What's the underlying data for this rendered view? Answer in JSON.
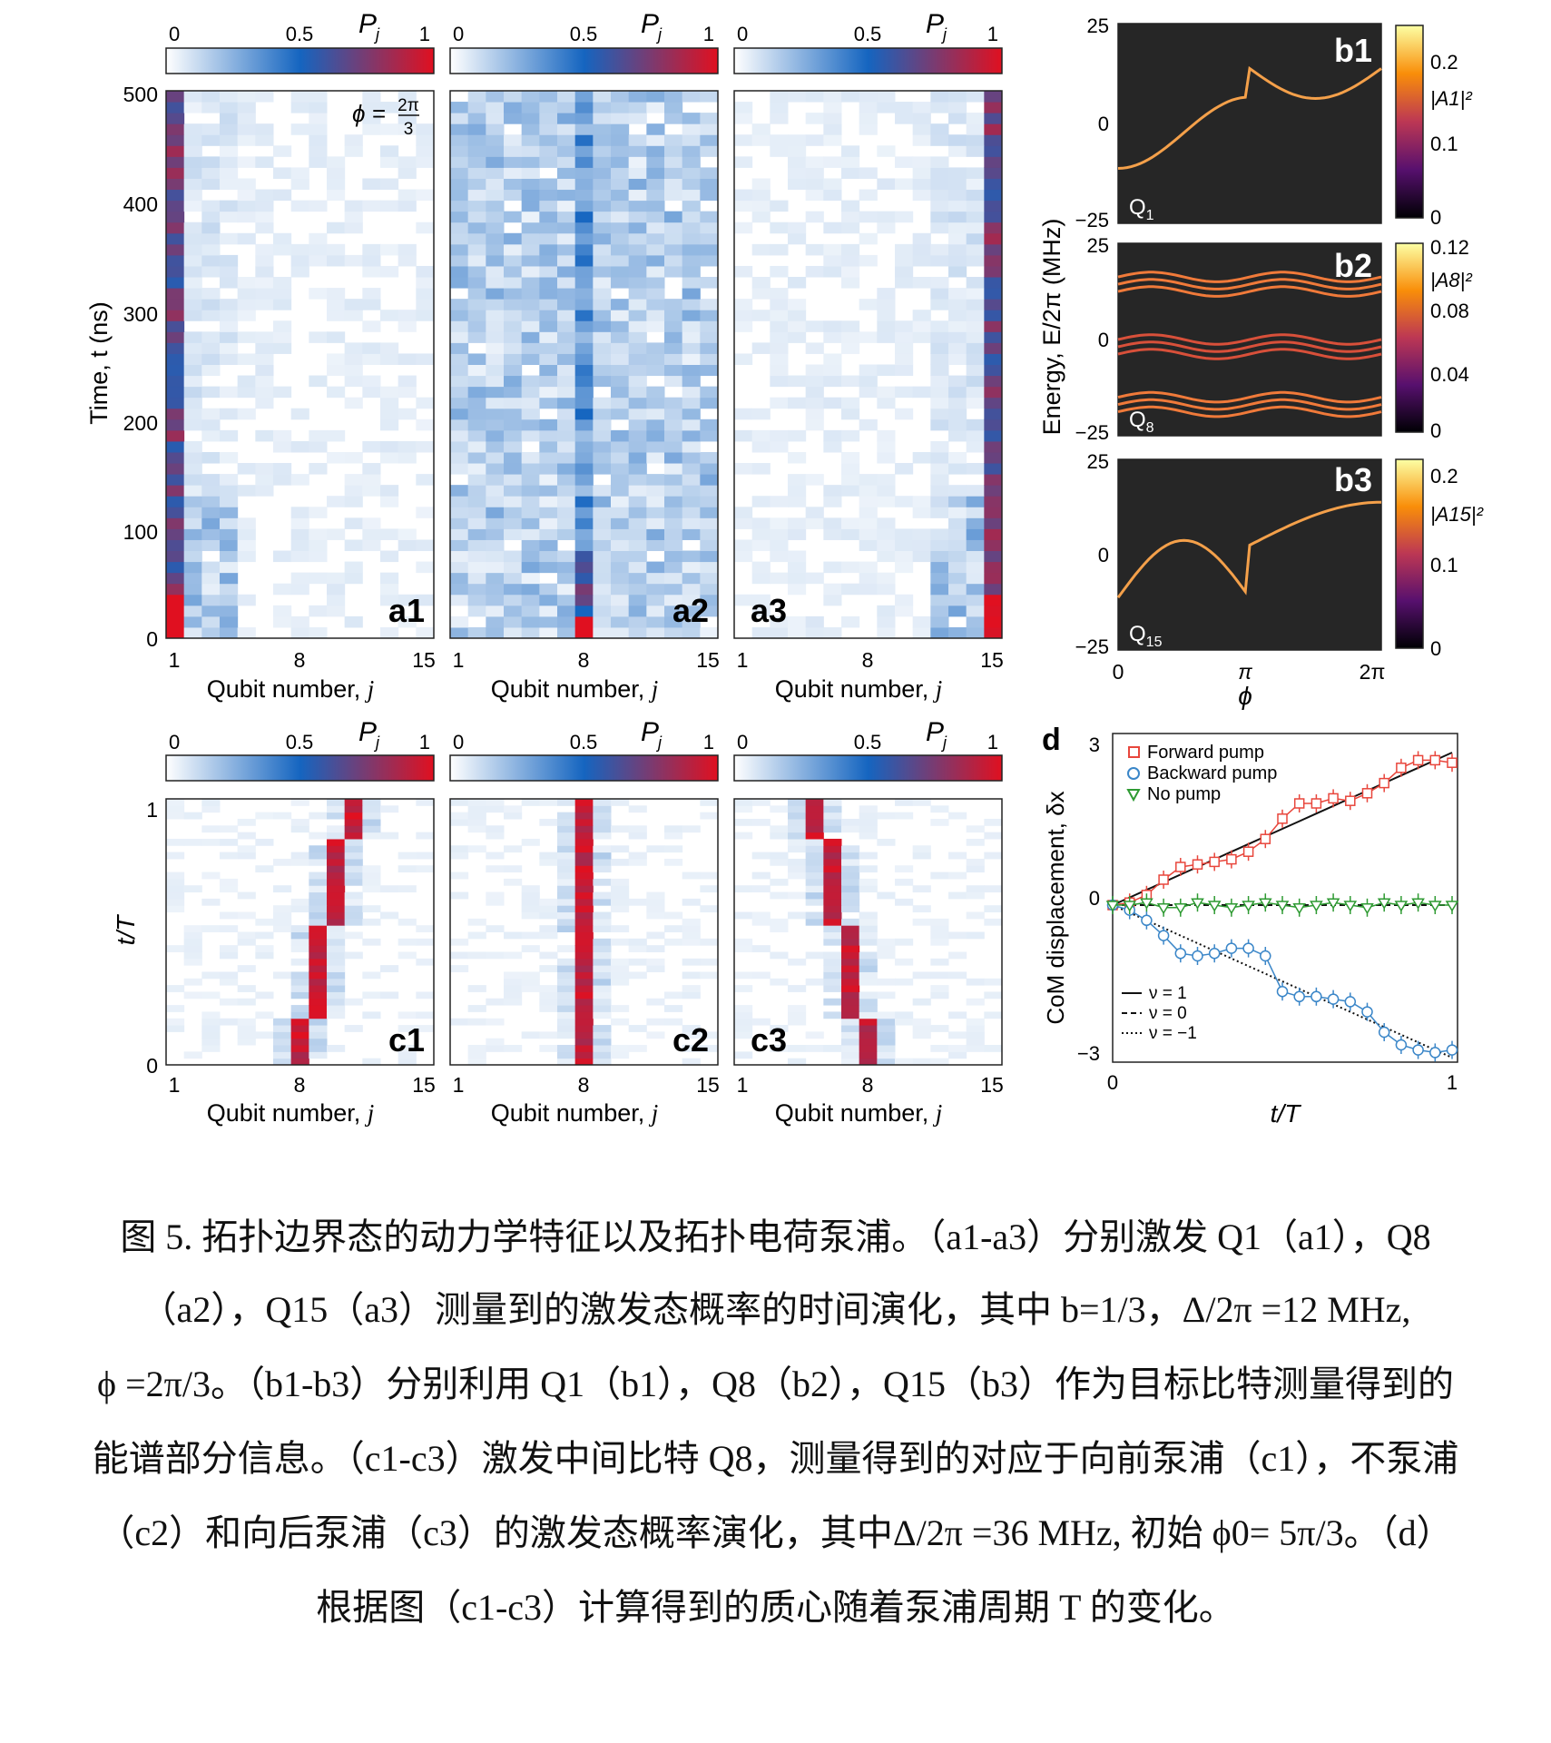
{
  "colorbar": {
    "ticks": [
      "0",
      "0.5",
      "1"
    ],
    "label": "P",
    "label_sub": "j",
    "colors": [
      "#ffffff",
      "#1565c0",
      "#e01020"
    ]
  },
  "a_panels": [
    {
      "label": "a1",
      "xticks": [
        "1",
        "8",
        "15"
      ],
      "xlabel": "Qubit number, ",
      "xlabel_var": "j"
    },
    {
      "label": "a2",
      "xticks": [
        "1",
        "8",
        "15"
      ],
      "xlabel": "Qubit number, ",
      "xlabel_var": "j"
    },
    {
      "label": "a3",
      "xticks": [
        "1",
        "8",
        "15"
      ],
      "xlabel": "Qubit number, ",
      "xlabel_var": "j"
    }
  ],
  "a_yaxis": {
    "label": "Time, t (ns)",
    "ticks": [
      "0",
      "100",
      "200",
      "300",
      "400",
      "500"
    ]
  },
  "a1_annotation": {
    "phi": "ϕ =",
    "num": "2π",
    "den": "3"
  },
  "c_panels": [
    {
      "label": "c1",
      "xticks": [
        "1",
        "8",
        "15"
      ],
      "xlabel": "Qubit number, ",
      "xlabel_var": "j"
    },
    {
      "label": "c2",
      "xticks": [
        "1",
        "8",
        "15"
      ],
      "xlabel": "Qubit number, ",
      "xlabel_var": "j"
    },
    {
      "label": "c3",
      "xticks": [
        "1",
        "8",
        "15"
      ],
      "xlabel": "Qubit number, ",
      "xlabel_var": "j"
    }
  ],
  "c_yaxis": {
    "label": "t/T",
    "ticks": [
      "0",
      "1"
    ]
  },
  "b_panels": [
    {
      "label": "b1",
      "qubit": "Q",
      "qubit_sub": "1",
      "cbar_label": "|A1|²",
      "cbar_ticks": [
        "0",
        "0.1",
        "0.2"
      ]
    },
    {
      "label": "b2",
      "qubit": "Q",
      "qubit_sub": "8",
      "cbar_label": "|A8|²",
      "cbar_ticks": [
        "0",
        "0.04",
        "0.08",
        "0.12"
      ]
    },
    {
      "label": "b3",
      "qubit": "Q",
      "qubit_sub": "15",
      "cbar_label": "|A15|²",
      "cbar_ticks": [
        "0",
        "0.1",
        "0.2"
      ]
    }
  ],
  "b_yaxis": {
    "label": "Energy, E/2π (MHz)",
    "ticks": [
      "−25",
      "0",
      "25"
    ]
  },
  "b_xaxis": {
    "label": "ϕ",
    "ticks": [
      "0",
      "π",
      "2π"
    ]
  },
  "d_panel": {
    "label": "d",
    "ylabel": "CoM displacement, δx",
    "xlabel": "t/T",
    "yticks": [
      "−3",
      "0",
      "3"
    ],
    "xticks": [
      "0",
      "1"
    ],
    "legend": [
      {
        "name": "Forward pump",
        "color": "#e8463c",
        "marker": "square"
      },
      {
        "name": "Backward pump",
        "color": "#3a86c8",
        "marker": "circle"
      },
      {
        "name": "No pump",
        "color": "#2e9a32",
        "marker": "triangle"
      }
    ],
    "lines_legend": [
      "ν = 1",
      "ν = 0",
      "ν = −1"
    ]
  },
  "chart_data": [
    {
      "type": "line",
      "title": "d",
      "xlabel": "t/T",
      "ylabel": "CoM displacement, δx",
      "xlim": [
        0,
        1
      ],
      "ylim": [
        -3.3,
        3.3
      ],
      "x": [
        0,
        0.05,
        0.1,
        0.15,
        0.2,
        0.25,
        0.3,
        0.35,
        0.4,
        0.45,
        0.5,
        0.55,
        0.6,
        0.65,
        0.7,
        0.75,
        0.8,
        0.85,
        0.9,
        0.95,
        1.0
      ],
      "series": [
        {
          "name": "Forward pump",
          "values": [
            0,
            0.05,
            0.2,
            0.5,
            0.75,
            0.8,
            0.85,
            0.9,
            1.05,
            1.3,
            1.7,
            2.0,
            2.0,
            2.1,
            2.05,
            2.2,
            2.4,
            2.7,
            2.85,
            2.85,
            2.8
          ]
        },
        {
          "name": "Backward pump",
          "values": [
            0,
            -0.1,
            -0.3,
            -0.6,
            -0.95,
            -1.0,
            -0.95,
            -0.85,
            -0.85,
            -1.0,
            -1.7,
            -1.8,
            -1.8,
            -1.85,
            -1.9,
            -2.1,
            -2.5,
            -2.75,
            -2.85,
            -2.9,
            -2.85
          ]
        },
        {
          "name": "No pump",
          "values": [
            0,
            0.0,
            0.05,
            -0.05,
            -0.05,
            0.05,
            0.0,
            -0.05,
            0.0,
            0.05,
            0.0,
            -0.05,
            0.0,
            0.05,
            0.0,
            -0.05,
            0.05,
            0.0,
            0.05,
            0.0,
            0.0
          ]
        },
        {
          "name": "ν = 1",
          "values": [
            0,
            0.15,
            0.3,
            0.45,
            0.6,
            0.75,
            0.9,
            1.05,
            1.2,
            1.35,
            1.5,
            1.65,
            1.8,
            1.95,
            2.1,
            2.25,
            2.4,
            2.55,
            2.7,
            2.85,
            3.0
          ]
        },
        {
          "name": "ν = 0",
          "values": [
            0,
            0,
            0,
            0,
            0,
            0,
            0,
            0,
            0,
            0,
            0,
            0,
            0,
            0,
            0,
            0,
            0,
            0,
            0,
            0,
            0
          ]
        },
        {
          "name": "ν = −1",
          "values": [
            0,
            -0.15,
            -0.3,
            -0.45,
            -0.6,
            -0.75,
            -0.9,
            -1.05,
            -1.2,
            -1.35,
            -1.5,
            -1.65,
            -1.8,
            -1.95,
            -2.1,
            -2.25,
            -2.4,
            -2.55,
            -2.7,
            -2.85,
            -3.0
          ]
        }
      ]
    }
  ],
  "caption": {
    "lines": [
      "图 5. 拓扑边界态的动力学特征以及拓扑电荷泵浦。（a1-a3）分别激发 Q1（a1），Q8",
      "（a2），Q15（a3）测量到的激发态概率的时间演化，其中 b=1/3，Δ/2π =12 MHz,",
      "ϕ =2π/3。（b1-b3）分别利用 Q1（b1），Q8（b2），Q15（b3）作为目标比特测量得到的",
      "能谱部分信息。（c1-c3）激发中间比特 Q8，测量得到的对应于向前泵浦（c1），不泵浦",
      "（c2）和向后泵浦（c3）的激发态概率演化，其中Δ/2π =36 MHz, 初始 ϕ0= 5π/3。（d）",
      "根据图（c1-c3）计算得到的质心随着泵浦周期 T 的变化。"
    ]
  }
}
